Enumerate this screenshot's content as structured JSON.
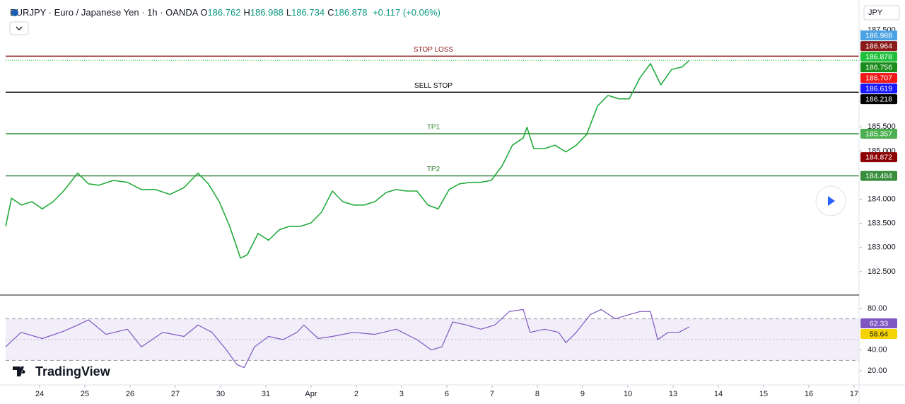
{
  "chart_data": [
    {
      "type": "line",
      "title": "EURJPY · Euro / Japanese Yen · 1h · OANDA",
      "ohlc": [
        {
          "label": "O",
          "value": 186.762
        },
        {
          "label": "H",
          "value": 186.988
        },
        {
          "label": "L",
          "value": 186.734
        },
        {
          "label": "C",
          "value": 186.878
        }
      ],
      "change": "+0.117 (+0.06%)",
      "currency": "JPY",
      "brand": "TradingView",
      "xlim": [
        -0.75,
        18.11
      ],
      "xticks": [
        {
          "value": 0,
          "label": "24"
        },
        {
          "value": 1,
          "label": "25"
        },
        {
          "value": 2,
          "label": "26"
        },
        {
          "value": 3,
          "label": "27"
        },
        {
          "value": 4,
          "label": "30"
        },
        {
          "value": 5,
          "label": "31"
        },
        {
          "value": 6,
          "label": "Apr"
        },
        {
          "value": 7,
          "label": "2"
        },
        {
          "value": 8,
          "label": "3"
        },
        {
          "value": 9,
          "label": "6"
        },
        {
          "value": 10,
          "label": "7"
        },
        {
          "value": 11,
          "label": "8"
        },
        {
          "value": 12,
          "label": "9"
        },
        {
          "value": 13,
          "label": "10"
        },
        {
          "value": 14,
          "label": "13"
        },
        {
          "value": 15,
          "label": "14"
        },
        {
          "value": 16,
          "label": "15"
        },
        {
          "value": 17,
          "label": "16"
        },
        {
          "value": 18,
          "label": "17"
        }
      ],
      "ylim": [
        182.03,
        188.01
      ],
      "yticks": [
        {
          "value": 182.5,
          "label": "182.500"
        },
        {
          "value": 183,
          "label": "183.000"
        },
        {
          "value": 183.5,
          "label": "183.500"
        },
        {
          "value": 184,
          "label": "184.000"
        },
        {
          "value": 185,
          "label": "185.000"
        },
        {
          "value": 185.5,
          "label": "185.500"
        },
        {
          "value": 187.5,
          "label": "187.500"
        }
      ],
      "series": [
        {
          "color": "#22ab3c",
          "x": [
            -0.75,
            -0.62,
            -0.4,
            -0.17,
            0.06,
            0.3,
            0.53,
            0.84,
            1.08,
            1.31,
            1.63,
            1.94,
            2.25,
            2.56,
            2.88,
            3.19,
            3.5,
            3.73,
            3.97,
            4.2,
            4.44,
            4.59,
            4.83,
            5.06,
            5.3,
            5.53,
            5.77,
            6.0,
            6.23,
            6.47,
            6.7,
            6.94,
            7.17,
            7.41,
            7.66,
            7.88,
            8.11,
            8.34,
            8.58,
            8.81,
            9.05,
            9.28,
            9.52,
            9.75,
            9.98,
            10.22,
            10.45,
            10.69,
            10.77,
            10.92,
            11.16,
            11.39,
            11.63,
            11.86,
            12.09,
            12.33,
            12.56,
            12.8,
            13.03,
            13.27,
            13.5,
            13.73,
            13.97,
            14.2,
            14.36
          ],
          "values": [
            183.44,
            184.02,
            183.88,
            183.95,
            183.8,
            183.95,
            184.17,
            184.54,
            184.32,
            184.29,
            184.39,
            184.35,
            184.2,
            184.2,
            184.1,
            184.24,
            184.54,
            184.32,
            183.95,
            183.44,
            182.78,
            182.85,
            183.29,
            183.15,
            183.37,
            183.44,
            183.44,
            183.51,
            183.73,
            184.17,
            183.95,
            183.88,
            183.88,
            183.95,
            184.14,
            184.2,
            184.17,
            184.17,
            183.88,
            183.8,
            184.2,
            184.32,
            184.35,
            184.35,
            184.39,
            184.69,
            185.12,
            185.27,
            185.49,
            185.05,
            185.05,
            185.12,
            184.98,
            185.12,
            185.34,
            185.93,
            186.15,
            186.08,
            186.08,
            186.52,
            186.81,
            186.37,
            186.69,
            186.74,
            186.878
          ]
        }
      ],
      "levels": [
        {
          "label": "STOP LOSS",
          "value": 186.964,
          "color": "#8b1a1a"
        },
        {
          "label": "SELL STOP",
          "value": 186.218,
          "color": "#000000"
        },
        {
          "label": "TP1",
          "value": 185.357,
          "color": "#2e8b34"
        },
        {
          "label": "TP2",
          "value": 184.484,
          "color": "#2e7d32"
        }
      ],
      "badges": [
        {
          "value": 186.988,
          "color": "#4ba3e3"
        },
        {
          "value": 186.964,
          "color": "#8b1a1a"
        },
        {
          "value": 186.878,
          "color": "#1fbf3a"
        },
        {
          "value": 186.756,
          "color": "#1b8c1b"
        },
        {
          "value": 186.707,
          "color": "#f21818"
        },
        {
          "value": 186.619,
          "color": "#1a1aff"
        },
        {
          "value": 186.218,
          "color": "#000000"
        },
        {
          "value": 185.357,
          "color": "#4caf50"
        },
        {
          "value": 184.872,
          "color": "#8b0000"
        },
        {
          "value": 184.484,
          "color": "#388e3c"
        }
      ]
    },
    {
      "type": "line",
      "xlim": [
        -0.75,
        18.11
      ],
      "ylim": [
        9.1,
        92.2
      ],
      "yticks": [
        {
          "value": 20,
          "label": "20.00"
        },
        {
          "value": 40,
          "label": "40.00"
        },
        {
          "value": 80,
          "label": "80.00"
        }
      ],
      "band": [
        30,
        70
      ],
      "midline": 50,
      "series": [
        {
          "color": "#7e57c2",
          "x": [
            -0.75,
            -0.41,
            0.06,
            0.53,
            0.84,
            1.08,
            1.47,
            1.94,
            2.25,
            2.72,
            3.19,
            3.5,
            3.81,
            4.13,
            4.36,
            4.52,
            4.75,
            5.06,
            5.38,
            5.69,
            5.84,
            6.16,
            6.47,
            6.94,
            7.41,
            7.88,
            8.34,
            8.66,
            8.89,
            9.13,
            9.44,
            9.75,
            10.06,
            10.38,
            10.69,
            10.84,
            11.16,
            11.47,
            11.63,
            11.86,
            12.17,
            12.41,
            12.72,
            13.03,
            13.27,
            13.5,
            13.66,
            13.89,
            14.13,
            14.36
          ],
          "values": [
            43,
            57,
            51,
            58,
            64,
            69,
            55,
            60,
            43,
            57,
            53,
            64,
            57,
            40,
            26,
            23,
            43,
            53,
            50,
            57,
            64,
            51,
            53,
            57,
            55,
            60,
            50,
            40,
            43,
            67,
            64,
            60,
            64,
            77,
            79,
            57,
            60,
            57,
            47,
            57,
            74,
            79,
            70,
            74,
            77,
            77,
            50,
            57,
            57,
            62.33
          ]
        }
      ],
      "badges": [
        {
          "value": 62.33,
          "color": "#7e57c2"
        },
        {
          "value": 58.64,
          "color": "#f5d300"
        }
      ]
    }
  ]
}
